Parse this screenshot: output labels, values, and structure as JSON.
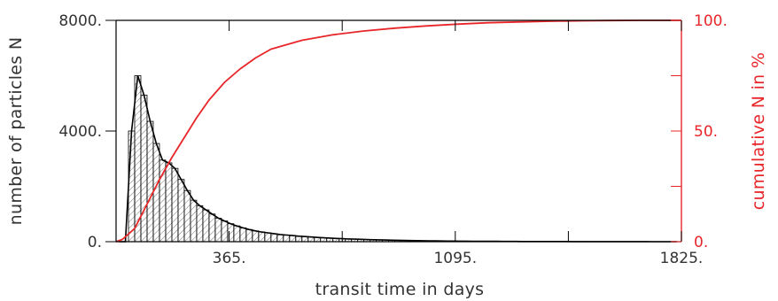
{
  "chart_data": {
    "type": "bar",
    "xlabel": "transit time in days",
    "ylabel": "number of particles N",
    "y2label": "cumulative N in %",
    "xlim": [
      0,
      1825
    ],
    "ylim": [
      0,
      8000
    ],
    "y2lim": [
      0,
      100
    ],
    "xticks": [
      365,
      1095,
      1825
    ],
    "xtick_labels": [
      "365.",
      "1095.",
      "1825."
    ],
    "xminor_ticks": [
      730,
      1460
    ],
    "yticks": [
      0,
      4000,
      8000
    ],
    "ytick_labels": [
      "0.",
      "4000.",
      "8000."
    ],
    "y2ticks": [
      0,
      50,
      100
    ],
    "y2tick_labels": [
      "0.",
      "50.",
      "100."
    ],
    "y2minor_ticks": [
      25,
      75
    ],
    "bin_width": 20,
    "bins_start": 0,
    "histogram_values": [
      0,
      0,
      4000,
      6000,
      5300,
      4350,
      3550,
      2950,
      2850,
      2650,
      2250,
      1850,
      1500,
      1300,
      1150,
      1000,
      850,
      750,
      650,
      570,
      500,
      440,
      390,
      350,
      320,
      290,
      260,
      240,
      220,
      200,
      185,
      170,
      155,
      140,
      130,
      120,
      110,
      100,
      92,
      85,
      78,
      72,
      66,
      60,
      55,
      50,
      46,
      42,
      38,
      35,
      32,
      29,
      26,
      24,
      22,
      20,
      18,
      16,
      15,
      14,
      13,
      12,
      11,
      10,
      9,
      8,
      8,
      7,
      7,
      6,
      6,
      5,
      5,
      4,
      4,
      4,
      3,
      3,
      3,
      3,
      2,
      2,
      2,
      2,
      2,
      2,
      1,
      1,
      1,
      1,
      1
    ],
    "cumulative_x": [
      0,
      20,
      60,
      100,
      140,
      180,
      220,
      260,
      300,
      350,
      400,
      450,
      500,
      550,
      600,
      700,
      800,
      900,
      1000,
      1100,
      1200,
      1300,
      1400,
      1500,
      1600,
      1700,
      1825
    ],
    "cumulative_y": [
      0,
      1,
      6,
      17,
      28,
      38,
      47,
      56,
      64,
      72,
      78,
      83,
      87,
      89,
      91,
      93.5,
      95.2,
      96.5,
      97.5,
      98.3,
      98.9,
      99.3,
      99.6,
      99.8,
      99.9,
      100,
      100
    ],
    "colors": {
      "histogram": "#000000",
      "hatch": "#555555",
      "cumulative": "#e8262a",
      "axes": "#000000",
      "right_axis": "#e8262a"
    }
  }
}
